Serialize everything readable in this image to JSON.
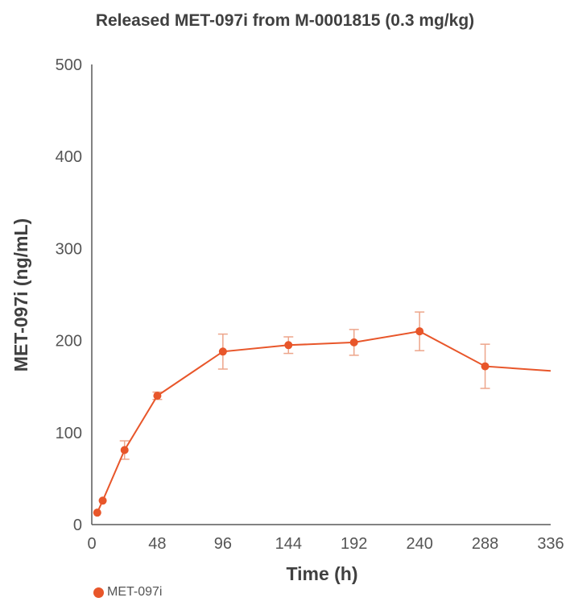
{
  "chart_data": {
    "type": "line",
    "title": "Released MET-097i from M-0001815 (0.3 mg/kg)",
    "xlabel": "Time (h)",
    "ylabel": "MET-097i (ng/mL)",
    "xlim": [
      0,
      336
    ],
    "ylim": [
      0,
      500
    ],
    "x_ticks": [
      0,
      48,
      96,
      144,
      192,
      240,
      288,
      336
    ],
    "y_ticks": [
      0,
      100,
      200,
      300,
      400,
      500
    ],
    "grid": false,
    "legend": "bottom-left",
    "series": [
      {
        "name": "MET-097i",
        "color": "#E8562A",
        "points": [
          {
            "x": 4,
            "y": 13,
            "err": null
          },
          {
            "x": 8,
            "y": 26,
            "err": null
          },
          {
            "x": 24,
            "y": 81,
            "err": 10
          },
          {
            "x": 48,
            "y": 140,
            "err": 4
          },
          {
            "x": 96,
            "y": 188,
            "err": 19
          },
          {
            "x": 144,
            "y": 195,
            "err": 9
          },
          {
            "x": 192,
            "y": 198,
            "err": 14
          },
          {
            "x": 240,
            "y": 210,
            "err": 21
          },
          {
            "x": 288,
            "y": 172,
            "err": 24
          }
        ],
        "line_end": {
          "x": 336,
          "y": 167
        }
      }
    ]
  }
}
